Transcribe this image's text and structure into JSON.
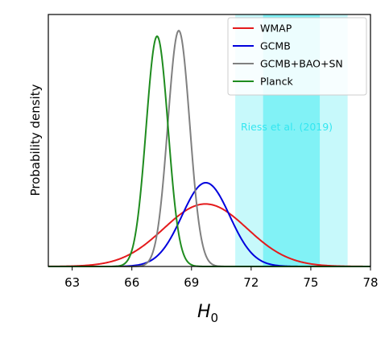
{
  "chart_data": {
    "type": "line",
    "xlabel": "H",
    "xlabel_sub": "0",
    "ylabel": "Probability density",
    "xlim": [
      61.8,
      78
    ],
    "ylim": [
      0,
      1.0
    ],
    "xticks": [
      63,
      66,
      69,
      72,
      75,
      78
    ],
    "grid": false,
    "legend_position": "top-right",
    "series": [
      {
        "name": "WMAP",
        "color": "#e41a1c",
        "mean": 69.7,
        "sigma": 2.1,
        "peak": 0.265
      },
      {
        "name": "GCMB",
        "color": "#0000dd",
        "mean": 69.72,
        "sigma": 1.2,
        "peak": 0.355
      },
      {
        "name": "GCMB+BAO+SN",
        "color": "#808080",
        "mean": 68.36,
        "sigma": 0.55,
        "peak": 1.0
      },
      {
        "name": "Planck",
        "color": "#1f8c1f",
        "mean": 67.27,
        "sigma": 0.55,
        "peak": 0.976
      }
    ],
    "bands": [
      {
        "label": "Riess et al. (2019)",
        "center": 74.03,
        "inner": [
          72.6,
          75.45
        ],
        "outer": [
          71.2,
          76.85
        ],
        "color": "#00e5ee"
      }
    ],
    "annotation": "Riess et al. (2019)",
    "annotation_color": "#33e6f0"
  }
}
